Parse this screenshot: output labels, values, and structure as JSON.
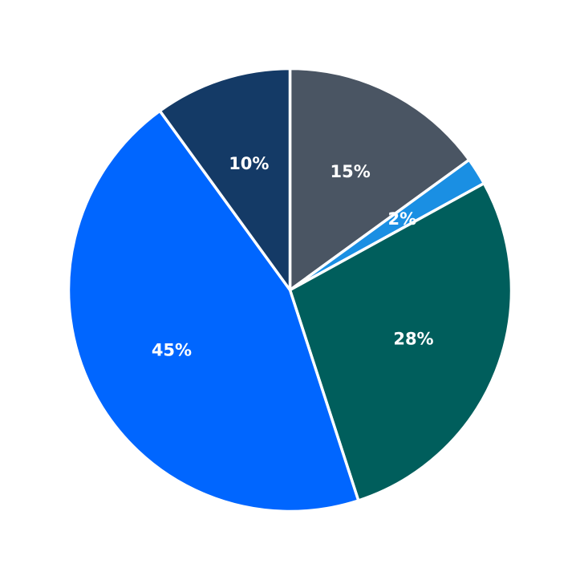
{
  "chart_data": {
    "type": "pie",
    "title": "",
    "start": "top",
    "direction": "clockwise",
    "slices": [
      {
        "value": 15,
        "label": "15%",
        "color": "#4a5563"
      },
      {
        "value": 2,
        "label": "2%",
        "color": "#1a8fe3"
      },
      {
        "value": 28,
        "label": "28%",
        "color": "#005e5c"
      },
      {
        "value": 45,
        "label": "45%",
        "color": "#0066ff"
      },
      {
        "value": 10,
        "label": "10%",
        "color": "#143a66"
      }
    ]
  }
}
